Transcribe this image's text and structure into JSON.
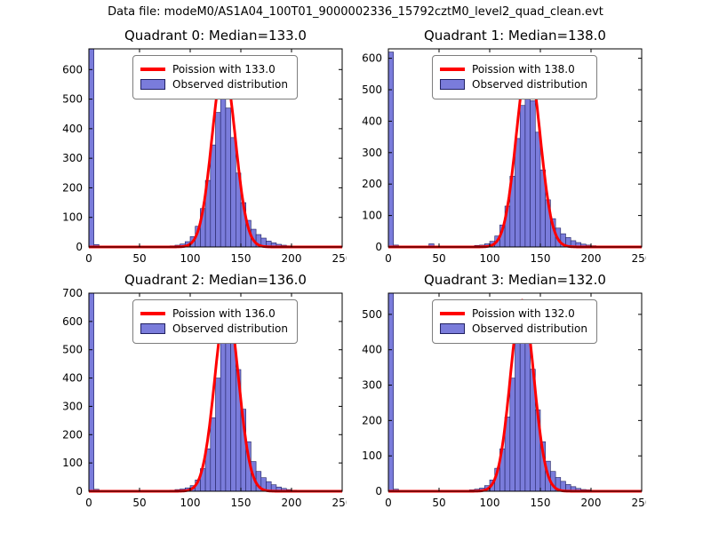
{
  "figure_title": "Data file: modeM0/AS1A04_100T01_9000002336_15792cztM0_level2_quad_clean.evt",
  "colors": {
    "bar_fill": "#7a7cdb",
    "bar_edge": "#202060",
    "curve": "#ff0000",
    "text": "#000000",
    "background": "#ffffff",
    "legend_border": "#7d7d7d"
  },
  "chart_data": [
    {
      "type": "bar",
      "variant": "histogram-with-fit-line",
      "title": "Quadrant 0: Median=133.0",
      "median": 133.0,
      "legend": {
        "poisson": "Poission with 133.0",
        "observed": "Observed distribution"
      },
      "xlabel": "",
      "ylabel": "",
      "xlim": [
        0,
        250
      ],
      "ylim": [
        0,
        670
      ],
      "x_ticks": [
        0,
        50,
        100,
        150,
        200,
        250
      ],
      "y_ticks": [
        0,
        100,
        200,
        300,
        400,
        500,
        600
      ],
      "bins": {
        "start": 0,
        "width": 5
      },
      "counts": [
        670,
        8,
        0,
        0,
        2,
        0,
        0,
        3,
        0,
        0,
        2,
        0,
        0,
        3,
        0,
        2,
        4,
        6,
        10,
        18,
        35,
        70,
        130,
        225,
        345,
        455,
        505,
        470,
        370,
        250,
        150,
        90,
        60,
        42,
        30,
        20,
        14,
        9,
        6,
        4,
        3,
        2,
        0,
        0,
        0,
        0,
        0,
        0,
        0,
        0
      ],
      "curve": {
        "model": "poisson",
        "mu": 133.0,
        "sigma": 11.5,
        "amplitude": 610
      }
    },
    {
      "type": "bar",
      "variant": "histogram-with-fit-line",
      "title": "Quadrant 1: Median=138.0",
      "median": 138.0,
      "legend": {
        "poisson": "Poission with 138.0",
        "observed": "Observed distribution"
      },
      "xlabel": "",
      "ylabel": "",
      "xlim": [
        0,
        250
      ],
      "ylim": [
        0,
        630
      ],
      "x_ticks": [
        0,
        50,
        100,
        150,
        200,
        250
      ],
      "y_ticks": [
        0,
        100,
        200,
        300,
        400,
        500,
        600
      ],
      "bins": {
        "start": 0,
        "width": 5
      },
      "counts": [
        620,
        6,
        0,
        0,
        0,
        0,
        0,
        0,
        10,
        0,
        0,
        0,
        0,
        2,
        0,
        0,
        3,
        5,
        6,
        10,
        18,
        35,
        70,
        130,
        225,
        345,
        450,
        500,
        465,
        365,
        245,
        150,
        90,
        60,
        42,
        30,
        20,
        14,
        9,
        6,
        4,
        3,
        2,
        0,
        0,
        0,
        0,
        0,
        0,
        0
      ],
      "curve": {
        "model": "poisson",
        "mu": 138.0,
        "sigma": 11.7,
        "amplitude": 590
      }
    },
    {
      "type": "bar",
      "variant": "histogram-with-fit-line",
      "title": "Quadrant 2: Median=136.0",
      "median": 136.0,
      "legend": {
        "poisson": "Poission with 136.0",
        "observed": "Observed distribution"
      },
      "xlabel": "",
      "ylabel": "",
      "xlim": [
        0,
        250
      ],
      "ylim": [
        0,
        700
      ],
      "x_ticks": [
        0,
        50,
        100,
        150,
        200,
        250
      ],
      "y_ticks": [
        0,
        100,
        200,
        300,
        400,
        500,
        600,
        700
      ],
      "bins": {
        "start": 0,
        "width": 5
      },
      "counts": [
        700,
        7,
        0,
        0,
        2,
        0,
        0,
        0,
        3,
        0,
        0,
        2,
        0,
        0,
        3,
        0,
        4,
        6,
        8,
        12,
        20,
        40,
        80,
        150,
        260,
        400,
        540,
        600,
        555,
        430,
        290,
        175,
        105,
        70,
        48,
        34,
        23,
        15,
        10,
        6,
        4,
        3,
        0,
        0,
        0,
        0,
        0,
        0,
        0,
        0
      ],
      "curve": {
        "model": "poisson",
        "mu": 136.0,
        "sigma": 11.7,
        "amplitude": 660
      }
    },
    {
      "type": "bar",
      "variant": "histogram-with-fit-line",
      "title": "Quadrant 3: Median=132.0",
      "median": 132.0,
      "legend": {
        "poisson": "Poission with 132.0",
        "observed": "Observed distribution"
      },
      "xlabel": "",
      "ylabel": "",
      "xlim": [
        0,
        250
      ],
      "ylim": [
        0,
        560
      ],
      "x_ticks": [
        0,
        50,
        100,
        150,
        200,
        250
      ],
      "y_ticks": [
        0,
        100,
        200,
        300,
        400,
        500
      ],
      "bins": {
        "start": 0,
        "width": 5
      },
      "counts": [
        560,
        6,
        0,
        0,
        0,
        2,
        0,
        0,
        3,
        0,
        0,
        0,
        2,
        0,
        0,
        3,
        4,
        6,
        9,
        16,
        32,
        65,
        120,
        210,
        320,
        425,
        470,
        435,
        345,
        230,
        140,
        85,
        56,
        39,
        28,
        19,
        13,
        8,
        5,
        4,
        3,
        2,
        0,
        0,
        0,
        0,
        0,
        0,
        0,
        0
      ],
      "curve": {
        "model": "poisson",
        "mu": 132.0,
        "sigma": 11.5,
        "amplitude": 540
      }
    }
  ]
}
